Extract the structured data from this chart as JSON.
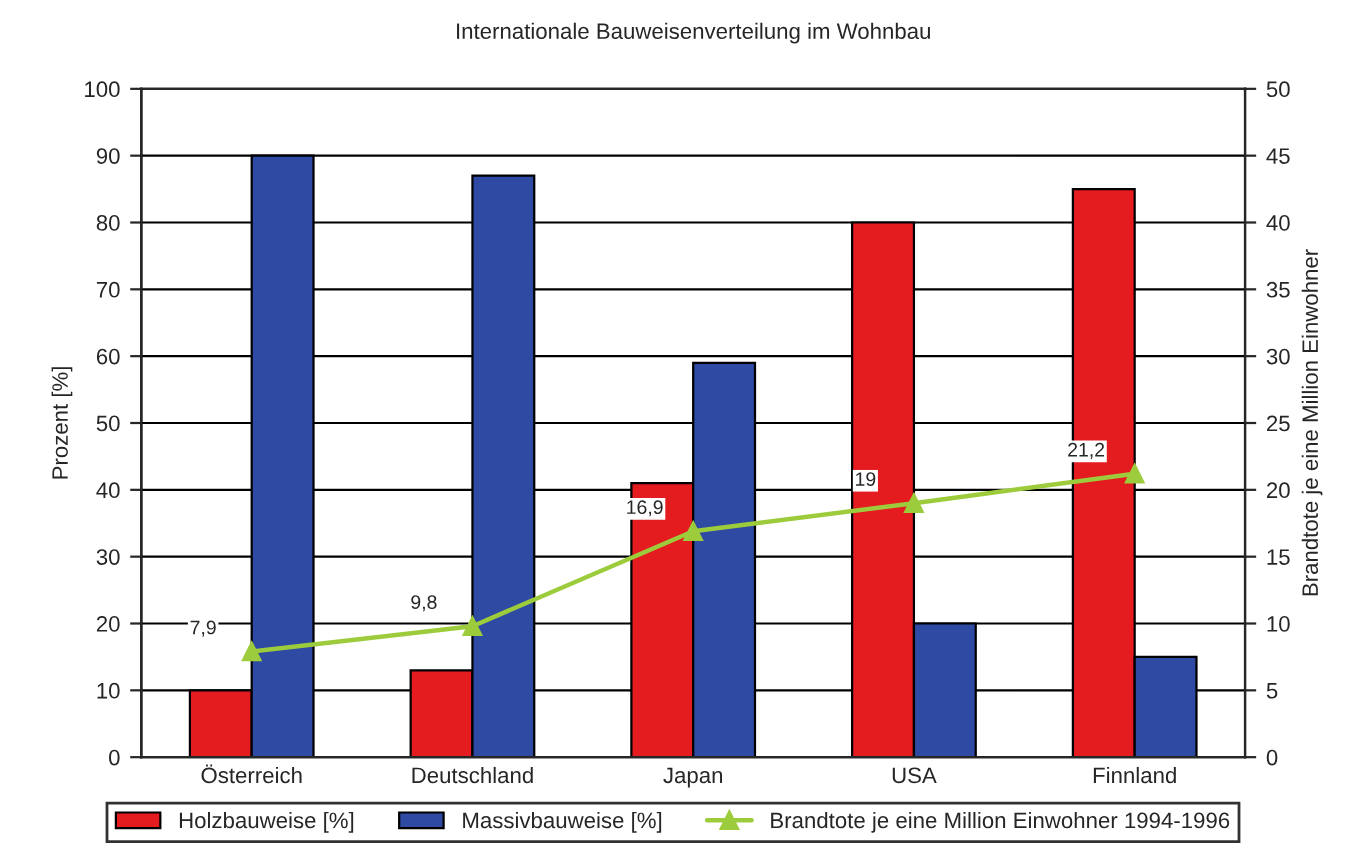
{
  "chart_data": {
    "type": "bar",
    "title": "Internationale Bauweisenverteilung im Wohnbau",
    "ylabel": "Prozent [%]",
    "y2label": "Brandtote je eine Million Einwohner",
    "categories": [
      "Österreich",
      "Deutschland",
      "Japan",
      "USA",
      "Finnland"
    ],
    "series": [
      {
        "name": "Holzbauweise [%]",
        "color": "#e41b1f",
        "values": [
          10,
          13,
          41,
          80,
          85
        ]
      },
      {
        "name": "Massivbauweise [%]",
        "color": "#2f4aa3",
        "values": [
          90,
          87,
          59,
          20,
          15
        ]
      },
      {
        "name": "Brandtote je eine Million Einwohner 1994-1996",
        "type": "line",
        "axis": "y2",
        "color": "#9ccc3c",
        "marker": "triangle",
        "values": [
          7.9,
          9.8,
          16.9,
          19,
          21.2
        ],
        "value_labels": [
          "7,9",
          "9,8",
          "16,9",
          "19",
          "21,2"
        ]
      }
    ],
    "ylim": [
      0,
      100
    ],
    "yticks": [
      0,
      10,
      20,
      30,
      40,
      50,
      60,
      70,
      80,
      90,
      100
    ],
    "y2lim": [
      0,
      50
    ],
    "y2ticks": [
      0,
      5,
      10,
      15,
      20,
      25,
      30,
      35,
      40,
      45,
      50
    ],
    "grid": "y",
    "legend": "bottom"
  }
}
